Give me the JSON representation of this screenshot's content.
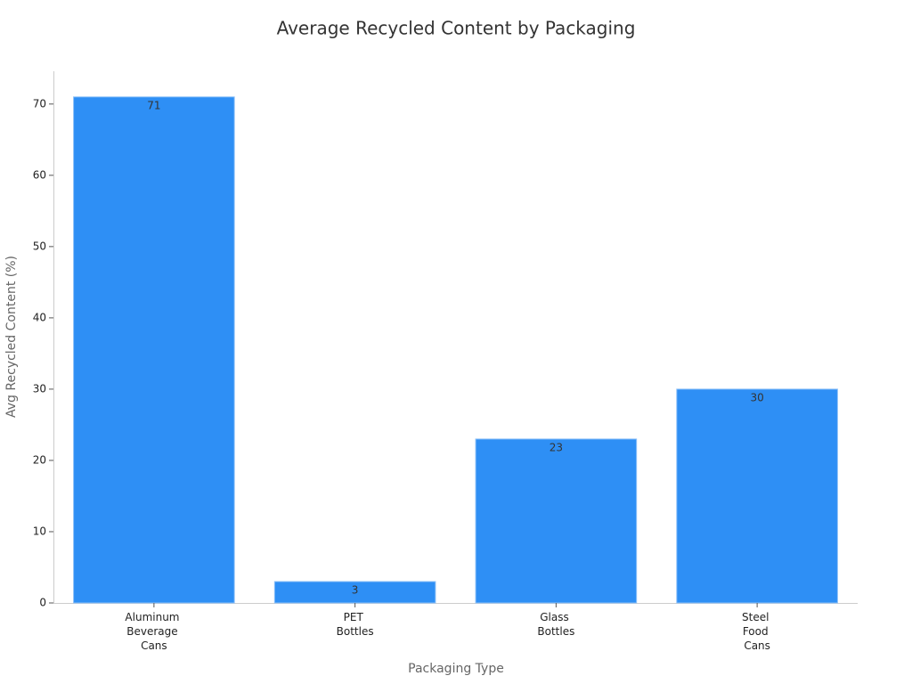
{
  "chart_data": {
    "type": "bar",
    "title": "Average Recycled Content by Packaging",
    "xlabel": "Packaging Type",
    "ylabel": "Avg Recycled Content (%)",
    "categories": [
      "Aluminum Beverage Cans",
      "PET Bottles",
      "Glass Bottles",
      "Steel Food Cans"
    ],
    "values": [
      71,
      3,
      23,
      30
    ],
    "color": "#2e8ff5",
    "ylim": [
      0,
      74.6
    ],
    "yticks": [
      0,
      10,
      20,
      30,
      40,
      50,
      60,
      70
    ],
    "grid": false
  }
}
